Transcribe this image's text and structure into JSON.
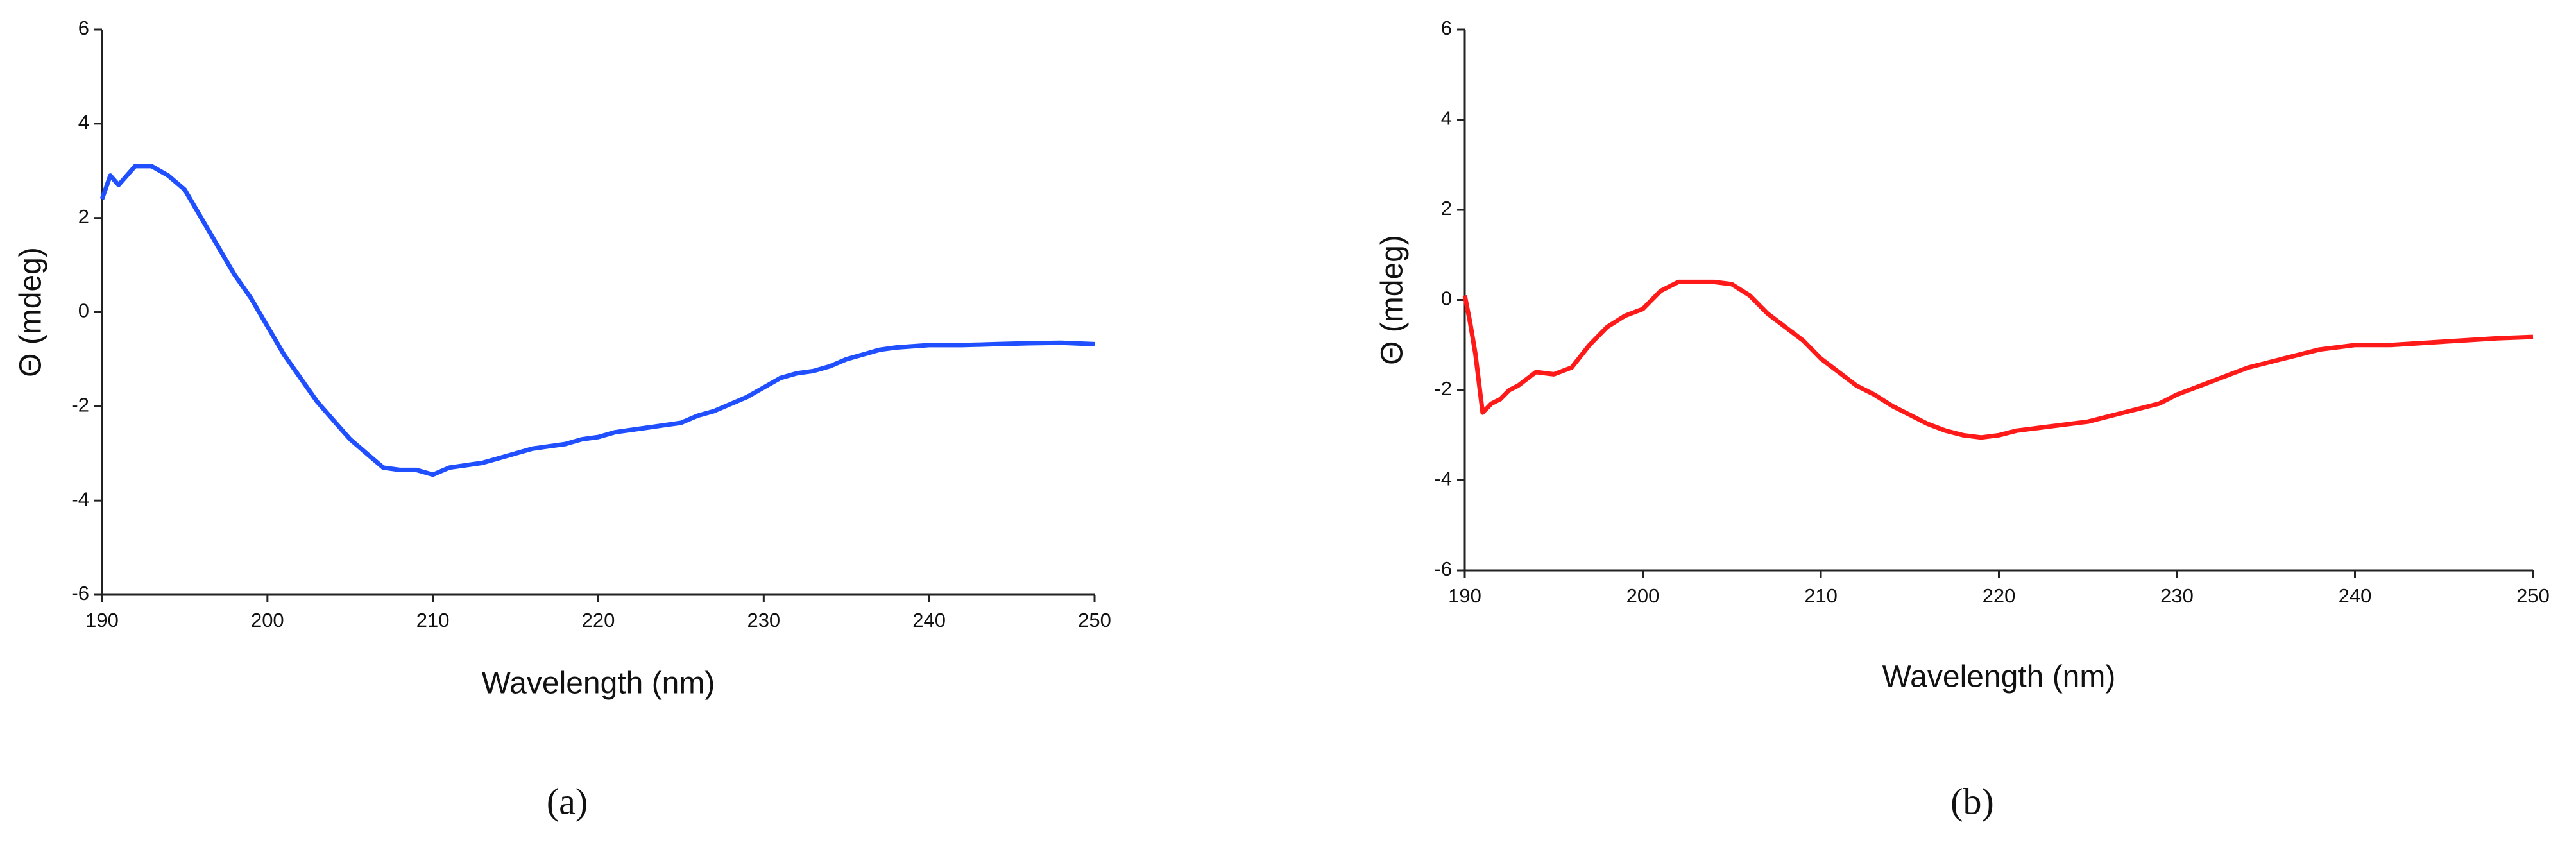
{
  "chart_data": [
    {
      "type": "line",
      "label": "(a)",
      "xlabel": "Wavelength (nm)",
      "ylabel": "Θ (mdeg)",
      "color": "#1f4fff",
      "xlim": [
        190,
        250
      ],
      "xticks": [
        190,
        200,
        210,
        220,
        230,
        240,
        250
      ],
      "ylim": [
        -6,
        6
      ],
      "yticks": [
        -6,
        -4,
        -2,
        0,
        2,
        4,
        6
      ],
      "x": [
        190,
        190.5,
        191,
        192,
        193,
        194,
        195,
        196,
        197,
        198,
        199,
        200,
        201,
        202,
        203,
        204,
        205,
        206,
        207,
        208,
        209,
        210,
        211,
        212,
        213,
        214,
        215,
        216,
        217,
        218,
        219,
        220,
        221,
        222,
        223,
        224,
        225,
        226,
        227,
        228,
        229,
        230,
        231,
        232,
        233,
        234,
        235,
        236,
        237,
        238,
        240,
        242,
        244,
        246,
        248,
        250
      ],
      "values": [
        2.4,
        2.9,
        2.7,
        3.1,
        3.1,
        2.9,
        2.6,
        2.0,
        1.4,
        0.8,
        0.3,
        -0.3,
        -0.9,
        -1.4,
        -1.9,
        -2.3,
        -2.7,
        -3.0,
        -3.3,
        -3.35,
        -3.35,
        -3.45,
        -3.3,
        -3.25,
        -3.2,
        -3.1,
        -3.0,
        -2.9,
        -2.85,
        -2.8,
        -2.7,
        -2.65,
        -2.55,
        -2.5,
        -2.45,
        -2.4,
        -2.35,
        -2.2,
        -2.1,
        -1.95,
        -1.8,
        -1.6,
        -1.4,
        -1.3,
        -1.25,
        -1.15,
        -1.0,
        -0.9,
        -0.8,
        -0.75,
        -0.7,
        -0.7,
        -0.68,
        -0.66,
        -0.65,
        -0.68
      ]
    },
    {
      "type": "line",
      "label": "(b)",
      "xlabel": "Wavelength (nm)",
      "ylabel": "Θ (mdeg)",
      "color": "#ff1a1a",
      "xlim": [
        190,
        250
      ],
      "xticks": [
        190,
        200,
        210,
        220,
        230,
        240,
        250
      ],
      "ylim": [
        -6,
        6
      ],
      "yticks": [
        -6,
        -4,
        -2,
        0,
        2,
        4,
        6
      ],
      "x": [
        190,
        190.3,
        190.6,
        191,
        191.5,
        192,
        192.5,
        193,
        194,
        195,
        196,
        197,
        198,
        199,
        200,
        201,
        202,
        203,
        204,
        205,
        206,
        207,
        208,
        209,
        210,
        211,
        212,
        213,
        214,
        215,
        216,
        217,
        218,
        219,
        220,
        221,
        222,
        223,
        224,
        225,
        226,
        227,
        228,
        229,
        230,
        231,
        232,
        233,
        234,
        235,
        236,
        237,
        238,
        239,
        240,
        242,
        244,
        246,
        248,
        250
      ],
      "values": [
        0.1,
        -0.5,
        -1.2,
        -2.5,
        -2.3,
        -2.2,
        -2.0,
        -1.9,
        -1.6,
        -1.65,
        -1.5,
        -1.0,
        -0.6,
        -0.35,
        -0.2,
        0.2,
        0.4,
        0.4,
        0.4,
        0.35,
        0.1,
        -0.3,
        -0.6,
        -0.9,
        -1.3,
        -1.6,
        -1.9,
        -2.1,
        -2.35,
        -2.55,
        -2.75,
        -2.9,
        -3.0,
        -3.05,
        -3.0,
        -2.9,
        -2.85,
        -2.8,
        -2.75,
        -2.7,
        -2.6,
        -2.5,
        -2.4,
        -2.3,
        -2.1,
        -1.95,
        -1.8,
        -1.65,
        -1.5,
        -1.4,
        -1.3,
        -1.2,
        -1.1,
        -1.05,
        -1.0,
        -1.0,
        -0.95,
        -0.9,
        -0.85,
        -0.82
      ]
    }
  ]
}
